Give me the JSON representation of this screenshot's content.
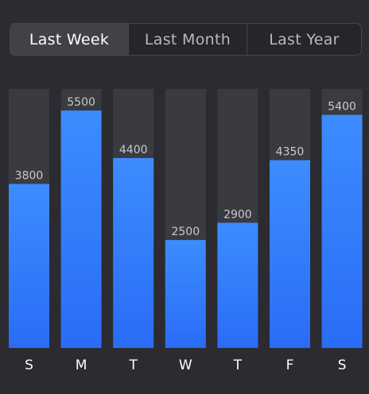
{
  "tabs": [
    {
      "label": "Last Week",
      "active": true
    },
    {
      "label": "Last Month",
      "active": false
    },
    {
      "label": "Last Year",
      "active": false
    }
  ],
  "colors": {
    "background": "#2b2b31",
    "track": "#3a3a41",
    "bar_top": "#3d8cff",
    "bar_bottom": "#2a6cf6",
    "value_label": "#c9c9cd",
    "day_label": "#ffffff"
  },
  "chart_data": {
    "type": "bar",
    "categories": [
      "S",
      "M",
      "T",
      "W",
      "T",
      "F",
      "S"
    ],
    "values": [
      3800,
      5500,
      4400,
      2500,
      2900,
      4350,
      5400
    ],
    "title": "",
    "xlabel": "",
    "ylabel": "",
    "ylim": [
      0,
      6000
    ],
    "grid": false
  }
}
